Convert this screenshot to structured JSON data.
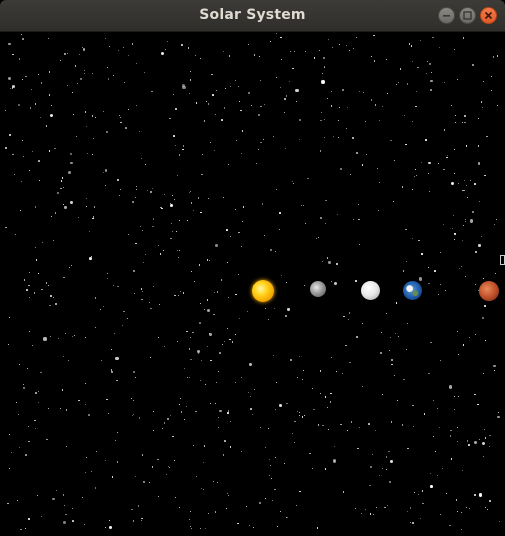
{
  "window": {
    "title": "Solar System",
    "controls": {
      "minimize": "minimize-icon",
      "maximize": "maximize-icon",
      "close": "close-icon"
    },
    "accent_close": "#e05a28"
  },
  "scene": {
    "background": "#000000",
    "bodies": [
      "sun",
      "mercury",
      "venus",
      "earth",
      "mars"
    ]
  }
}
